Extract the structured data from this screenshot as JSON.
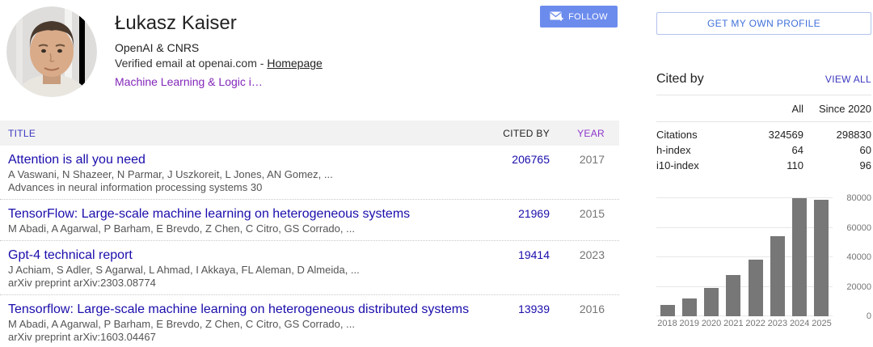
{
  "profile": {
    "name": "Łukasz Kaiser",
    "affiliation": "OpenAI & CNRS",
    "verified_email": "Verified email at openai.com - ",
    "homepage_label": "Homepage",
    "interests": "Machine Learning & Logic i…",
    "follow_label": "FOLLOW"
  },
  "sidebar": {
    "get_profile_label": "GET MY OWN PROFILE",
    "cited_by": {
      "title": "Cited by",
      "view_all_label": "VIEW ALL",
      "columns": [
        "All",
        "Since 2020"
      ],
      "rows": [
        {
          "label": "Citations",
          "all": "324569",
          "since": "298830"
        },
        {
          "label": "h-index",
          "all": "64",
          "since": "60"
        },
        {
          "label": "i10-index",
          "all": "110",
          "since": "96"
        }
      ]
    }
  },
  "publications": {
    "headers": {
      "title": "TITLE",
      "cited_by": "CITED BY",
      "year": "YEAR"
    },
    "rows": [
      {
        "title": "Attention is all you need",
        "authors": "A Vaswani, N Shazeer, N Parmar, J Uszkoreit, L Jones, AN Gomez, ...",
        "venue": "Advances in neural information processing systems 30",
        "cited_by": "206765",
        "year": "2017"
      },
      {
        "title": "TensorFlow: Large-scale machine learning on heterogeneous systems",
        "authors": "M Abadi, A Agarwal, P Barham, E Brevdo, Z Chen, C Citro, GS Corrado, ...",
        "venue": "",
        "cited_by": "21969",
        "year": "2015"
      },
      {
        "title": "Gpt-4 technical report",
        "authors": "J Achiam, S Adler, S Agarwal, L Ahmad, I Akkaya, FL Aleman, D Almeida, ...",
        "venue": "arXiv preprint arXiv:2303.08774",
        "cited_by": "19414",
        "year": "2023"
      },
      {
        "title": "Tensorflow: Large-scale machine learning on heterogeneous distributed systems",
        "authors": "M Abadi, A Agarwal, P Barham, E Brevdo, Z Chen, C Citro, GS Corrado, ...",
        "venue": "arXiv preprint arXiv:1603.04467",
        "cited_by": "13939",
        "year": "2016"
      }
    ]
  },
  "chart_data": {
    "type": "bar",
    "categories": [
      "2018",
      "2019",
      "2020",
      "2021",
      "2022",
      "2023",
      "2024",
      "2025"
    ],
    "values": [
      7500,
      12000,
      19000,
      28000,
      38500,
      54000,
      80000,
      79000
    ],
    "title": "",
    "xlabel": "",
    "ylabel": "",
    "ylim": [
      0,
      80000
    ],
    "yticks": [
      0,
      20000,
      40000,
      60000,
      80000
    ],
    "bar_color": "#777777",
    "grid": true,
    "ytick_side": "right",
    "legend": "none"
  },
  "icons": {
    "follow": "envelope-plus-icon"
  },
  "colors": {
    "link_blue": "#1a0dab",
    "header_link_indigo": "#3c38c0",
    "visited_purple": "#8327ba",
    "year_header_purple": "#8d35cb",
    "follow_button_bg": "#6c8ced",
    "get_profile_text": "#4272db",
    "get_profile_border": "#b4c3ee",
    "table_header_bg": "#f2f2f2",
    "text_dark": "#222222",
    "text_gray": "#545454",
    "text_light_gray": "#757575",
    "bar_gray": "#777777"
  }
}
